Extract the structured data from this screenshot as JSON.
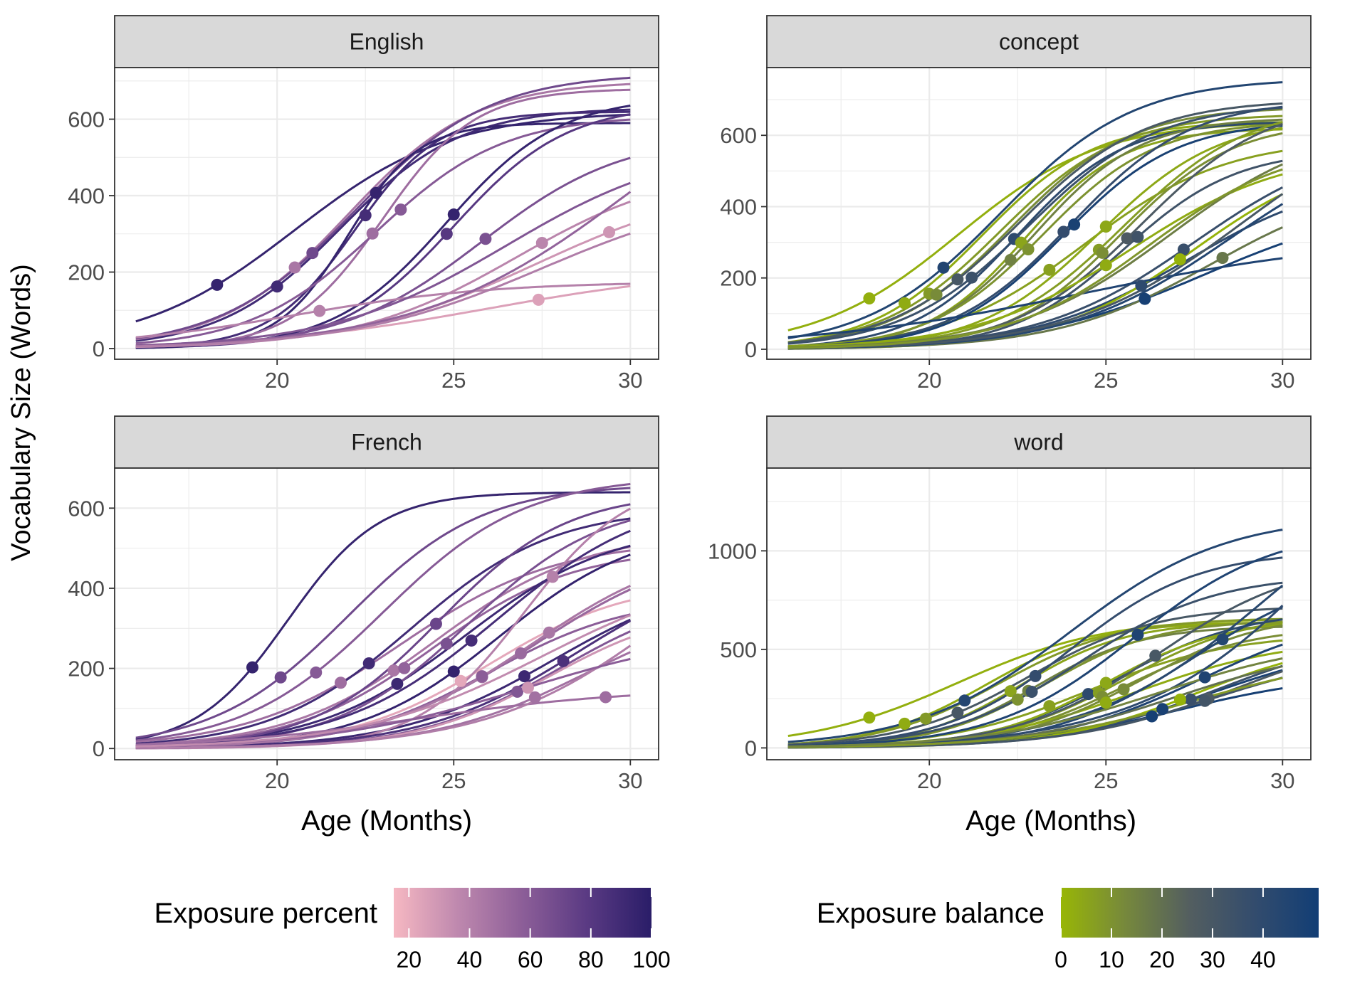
{
  "chart_data": {
    "type": "line",
    "layout": "facet-grid-2x2",
    "y_axis_title": "Vocabulary Size (Words)",
    "x_axis_title": "Age (Months)",
    "grid": true,
    "legend_placement": "bottom",
    "x_range": [
      15.4,
      30.8
    ],
    "x_ticks": [
      20,
      25,
      30
    ],
    "curve_start_age": 16,
    "curve_end_age": 30,
    "curve_model": "logistic: y = asym / (1 + exp(-(age - mid) / scale)); points mark an observed (age, words) on each child's curve",
    "panels": [
      {
        "id": "english",
        "strip": "English",
        "color_scale": "percent",
        "ylim": [
          -28,
          735
        ],
        "yticks": [
          0,
          200,
          400,
          600
        ],
        "series": [
          {
            "asym": 620,
            "mid": 20.5,
            "scale": 2.2,
            "c": 95,
            "px": 18.3
          },
          {
            "asym": 630,
            "mid": 21.8,
            "scale": 1.7,
            "c": 90,
            "px": 20.0
          },
          {
            "asym": 700,
            "mid": 22.0,
            "scale": 1.8,
            "c": 45,
            "px": 20.5
          },
          {
            "asym": 720,
            "mid": 22.2,
            "scale": 1.9,
            "c": 70,
            "px": 21.0
          },
          {
            "asym": 620,
            "mid": 22.2,
            "scale": 1.2,
            "c": 88,
            "px": 22.5
          },
          {
            "asym": 590,
            "mid": 22.0,
            "scale": 1.0,
            "c": 95,
            "px": 22.8
          },
          {
            "asym": 680,
            "mid": 23.0,
            "scale": 1.3,
            "c": 50,
            "px": 22.7
          },
          {
            "asym": 610,
            "mid": 22.8,
            "scale": 1.8,
            "c": 60,
            "px": 23.5
          },
          {
            "asym": 640,
            "mid": 25.0,
            "scale": 1.6,
            "c": 80,
            "px": 24.8
          },
          {
            "asym": 660,
            "mid": 24.8,
            "scale": 1.6,
            "c": 95,
            "px": 25.0
          },
          {
            "asym": 560,
            "mid": 25.8,
            "scale": 2.0,
            "c": 65,
            "px": 25.9
          },
          {
            "asym": 480,
            "mid": 26.8,
            "scale": 2.3,
            "c": 38,
            "px": 27.5
          },
          {
            "asym": 440,
            "mid": 27.3,
            "scale": 2.6,
            "c": 30,
            "px": 29.4
          },
          {
            "asym": 175,
            "mid": 20.5,
            "scale": 2.8,
            "c": 40,
            "px": 21.2
          },
          {
            "asym": 210,
            "mid": 26.0,
            "scale": 3.2,
            "c": 25,
            "px": 27.4
          },
          {
            "asym": 820,
            "mid": 30.0,
            "scale": 3.0,
            "c": 55
          },
          {
            "asym": 540,
            "mid": 26.5,
            "scale": 2.5,
            "c": 62
          },
          {
            "asym": 420,
            "mid": 27.5,
            "scale": 2.7,
            "c": 42
          }
        ]
      },
      {
        "id": "concept",
        "strip": "concept",
        "color_scale": "balance",
        "ylim": [
          -28,
          790
        ],
        "yticks": [
          0,
          200,
          400,
          600
        ],
        "series": [
          {
            "asym": 640,
            "mid": 20.8,
            "scale": 2.0,
            "c": 2,
            "px": 18.3
          },
          {
            "asym": 640,
            "mid": 21.5,
            "scale": 1.6,
            "c": 3,
            "px": 19.3
          },
          {
            "asym": 760,
            "mid": 22.0,
            "scale": 1.9,
            "c": 45,
            "px": 20.4
          },
          {
            "asym": 660,
            "mid": 22.0,
            "scale": 1.7,
            "c": 8,
            "px": 20.0
          },
          {
            "asym": 680,
            "mid": 22.3,
            "scale": 1.7,
            "c": 12,
            "px": 20.2
          },
          {
            "asym": 700,
            "mid": 22.5,
            "scale": 1.8,
            "c": 30,
            "px": 20.8
          },
          {
            "asym": 690,
            "mid": 22.8,
            "scale": 1.8,
            "c": 35,
            "px": 21.2
          },
          {
            "asym": 640,
            "mid": 22.5,
            "scale": 1.5,
            "c": 40,
            "px": 22.4
          },
          {
            "asym": 620,
            "mid": 22.7,
            "scale": 1.4,
            "c": 5,
            "px": 22.6
          },
          {
            "asym": 650,
            "mid": 23.0,
            "scale": 1.5,
            "c": 15,
            "px": 22.3
          },
          {
            "asym": 640,
            "mid": 23.2,
            "scale": 1.6,
            "c": 10,
            "px": 22.8
          },
          {
            "asym": 590,
            "mid": 24.4,
            "scale": 2.0,
            "c": 6,
            "px": 23.4
          },
          {
            "asym": 700,
            "mid": 24.0,
            "scale": 1.7,
            "c": 38,
            "px": 23.8
          },
          {
            "asym": 640,
            "mid": 23.8,
            "scale": 1.6,
            "c": 48,
            "px": 24.1
          },
          {
            "asym": 650,
            "mid": 24.8,
            "scale": 1.7,
            "c": 4,
            "px": 25.0
          },
          {
            "asym": 690,
            "mid": 25.5,
            "scale": 1.8,
            "c": 7,
            "px": 24.8
          },
          {
            "asym": 640,
            "mid": 25.4,
            "scale": 1.6,
            "c": 11,
            "px": 24.9
          },
          {
            "asym": 700,
            "mid": 26.0,
            "scale": 1.8,
            "c": 28,
            "px": 25.6
          },
          {
            "asym": 560,
            "mid": 25.5,
            "scale": 1.6,
            "c": 33,
            "px": 25.9
          },
          {
            "asym": 560,
            "mid": 25.7,
            "scale": 2.2,
            "c": 3,
            "px": 25.0
          },
          {
            "asym": 500,
            "mid": 27.3,
            "scale": 2.2,
            "c": 40,
            "px": 26.0
          },
          {
            "asym": 420,
            "mid": 27.8,
            "scale": 2.5,
            "c": 49,
            "px": 26.1
          },
          {
            "asym": 600,
            "mid": 27.5,
            "scale": 2.2,
            "c": 36,
            "px": 27.2
          },
          {
            "asym": 560,
            "mid": 27.5,
            "scale": 2.0,
            "c": 1,
            "px": 27.1
          },
          {
            "asym": 480,
            "mid": 28.0,
            "scale": 2.2,
            "c": 18,
            "px": 28.3
          },
          {
            "asym": 320,
            "mid": 24.5,
            "scale": 4.0,
            "c": 46
          },
          {
            "asym": 620,
            "mid": 28.5,
            "scale": 2.3,
            "c": 44
          },
          {
            "asym": 700,
            "mid": 28.8,
            "scale": 2.4,
            "c": 30
          },
          {
            "asym": 640,
            "mid": 26.8,
            "scale": 2.2,
            "c": 16
          },
          {
            "asym": 580,
            "mid": 26.2,
            "scale": 2.0,
            "c": 9
          }
        ]
      },
      {
        "id": "french",
        "strip": "French",
        "color_scale": "percent",
        "ylim": [
          -28,
          700
        ],
        "yticks": [
          0,
          200,
          400,
          600
        ],
        "series": [
          {
            "asym": 640,
            "mid": 20.3,
            "scale": 1.3,
            "c": 95,
            "px": 19.3
          },
          {
            "asym": 660,
            "mid": 22.0,
            "scale": 1.9,
            "c": 70,
            "px": 20.1
          },
          {
            "asym": 680,
            "mid": 23.0,
            "scale": 2.0,
            "c": 60,
            "px": 21.1
          },
          {
            "asym": 520,
            "mid": 23.5,
            "scale": 2.2,
            "c": 50,
            "px": 21.8
          },
          {
            "asym": 600,
            "mid": 23.8,
            "scale": 2.0,
            "c": 90,
            "px": 22.6
          },
          {
            "asym": 540,
            "mid": 24.5,
            "scale": 2.1,
            "c": 45,
            "px": 23.3
          },
          {
            "asym": 500,
            "mid": 24.4,
            "scale": 2.0,
            "c": 55,
            "px": 23.6
          },
          {
            "asym": 560,
            "mid": 25.3,
            "scale": 2.1,
            "c": 92,
            "px": 23.4
          },
          {
            "asym": 640,
            "mid": 24.6,
            "scale": 1.8,
            "c": 72,
            "px": 24.5
          },
          {
            "asym": 620,
            "mid": 25.4,
            "scale": 1.9,
            "c": 65,
            "px": 24.8
          },
          {
            "asym": 640,
            "mid": 26.2,
            "scale": 2.2,
            "c": 88,
            "px": 25.5
          },
          {
            "asym": 560,
            "mid": 26.3,
            "scale": 2.0,
            "c": 96,
            "px": 25.0
          },
          {
            "asym": 420,
            "mid": 26.0,
            "scale": 2.0,
            "c": 22,
            "px": 25.2
          },
          {
            "asym": 520,
            "mid": 27.3,
            "scale": 2.3,
            "c": 50,
            "px": 25.8
          },
          {
            "asym": 380,
            "mid": 26.0,
            "scale": 2.0,
            "c": 58,
            "px": 25.8
          },
          {
            "asym": 520,
            "mid": 27.3,
            "scale": 2.3,
            "c": 52,
            "px": 26.9
          },
          {
            "asym": 440,
            "mid": 27.8,
            "scale": 2.2,
            "c": 92,
            "px": 27.0
          },
          {
            "asym": 400,
            "mid": 28.0,
            "scale": 2.0,
            "c": 62,
            "px": 26.8
          },
          {
            "asym": 360,
            "mid": 27.7,
            "scale": 1.9,
            "c": 30,
            "px": 27.1
          },
          {
            "asym": 380,
            "mid": 28.8,
            "scale": 2.2,
            "c": 48,
            "px": 27.3
          },
          {
            "asym": 680,
            "mid": 27.0,
            "scale": 1.5,
            "c": 40,
            "px": 27.8
          },
          {
            "asym": 520,
            "mid": 27.2,
            "scale": 2.2,
            "c": 45,
            "px": 27.7
          },
          {
            "asym": 480,
            "mid": 28.5,
            "scale": 2.2,
            "c": 85,
            "px": 28.1
          },
          {
            "asym": 150,
            "mid": 24.0,
            "scale": 3.0,
            "c": 50,
            "px": 29.3
          },
          {
            "asym": 640,
            "mid": 31.0,
            "scale": 2.5,
            "c": 42
          },
          {
            "asym": 300,
            "mid": 27.0,
            "scale": 2.8,
            "c": 58
          },
          {
            "asym": 460,
            "mid": 27.5,
            "scale": 2.6,
            "c": 35
          }
        ]
      },
      {
        "id": "word",
        "strip": "word",
        "color_scale": "balance",
        "ylim": [
          -60,
          1420
        ],
        "yticks": [
          0,
          500,
          1000
        ],
        "series": [
          {
            "asym": 660,
            "mid": 20.8,
            "scale": 2.1,
            "c": 2,
            "px": 18.3
          },
          {
            "asym": 640,
            "mid": 21.6,
            "scale": 1.6,
            "c": 3,
            "px": 19.3
          },
          {
            "asym": 660,
            "mid": 22.0,
            "scale": 1.7,
            "c": 8,
            "px": 19.9
          },
          {
            "asym": 1180,
            "mid": 24.0,
            "scale": 2.2,
            "c": 44,
            "px": 21.0
          },
          {
            "asym": 720,
            "mid": 22.8,
            "scale": 1.8,
            "c": 30,
            "px": 20.8
          },
          {
            "asym": 640,
            "mid": 22.6,
            "scale": 1.5,
            "c": 5,
            "px": 22.3
          },
          {
            "asym": 620,
            "mid": 23.0,
            "scale": 1.5,
            "c": 15,
            "px": 22.8
          },
          {
            "asym": 650,
            "mid": 23.3,
            "scale": 1.6,
            "c": 10,
            "px": 22.5
          },
          {
            "asym": 880,
            "mid": 24.3,
            "scale": 1.9,
            "c": 35,
            "px": 22.9
          },
          {
            "asym": 1000,
            "mid": 24.0,
            "scale": 1.8,
            "c": 38,
            "px": 23.0
          },
          {
            "asym": 580,
            "mid": 24.5,
            "scale": 2.0,
            "c": 6,
            "px": 23.4
          },
          {
            "asym": 700,
            "mid": 25.3,
            "scale": 1.8,
            "c": 40,
            "px": 24.5
          },
          {
            "asym": 660,
            "mid": 25.0,
            "scale": 1.7,
            "c": 4,
            "px": 25.0
          },
          {
            "asym": 690,
            "mid": 25.5,
            "scale": 1.8,
            "c": 7,
            "px": 24.8
          },
          {
            "asym": 620,
            "mid": 25.5,
            "scale": 1.8,
            "c": 11,
            "px": 24.9
          },
          {
            "asym": 560,
            "mid": 25.8,
            "scale": 2.2,
            "c": 3,
            "px": 25.0
          },
          {
            "asym": 1120,
            "mid": 25.8,
            "scale": 2.0,
            "c": 46,
            "px": 25.9
          },
          {
            "asym": 690,
            "mid": 26.0,
            "scale": 1.8,
            "c": 12,
            "px": 25.5
          },
          {
            "asym": 560,
            "mid": 28.0,
            "scale": 2.3,
            "c": 48,
            "px": 26.6
          },
          {
            "asym": 380,
            "mid": 27.0,
            "scale": 2.2,
            "c": 49,
            "px": 26.3
          },
          {
            "asym": 960,
            "mid": 26.5,
            "scale": 2.0,
            "c": 30,
            "px": 26.4
          },
          {
            "asym": 600,
            "mid": 28.2,
            "scale": 2.2,
            "c": 36,
            "px": 27.4
          },
          {
            "asym": 560,
            "mid": 27.6,
            "scale": 2.0,
            "c": 1,
            "px": 27.1
          },
          {
            "asym": 700,
            "mid": 27.7,
            "scale": 2.1,
            "c": 46,
            "px": 27.8
          },
          {
            "asym": 620,
            "mid": 28.8,
            "scale": 2.3,
            "c": 28,
            "px": 27.9
          },
          {
            "asym": 500,
            "mid": 28.0,
            "scale": 2.2,
            "c": 32,
            "px": 27.8
          },
          {
            "asym": 920,
            "mid": 27.5,
            "scale": 2.0,
            "c": 44,
            "px": 28.3
          },
          {
            "asym": 2200,
            "mid": 32.0,
            "scale": 2.8,
            "c": 40
          },
          {
            "asym": 1500,
            "mid": 29.5,
            "scale": 2.5,
            "c": 42
          },
          {
            "asym": 520,
            "mid": 27.0,
            "scale": 2.2,
            "c": 20
          },
          {
            "asym": 480,
            "mid": 27.5,
            "scale": 2.4,
            "c": 8
          },
          {
            "asym": 560,
            "mid": 26.5,
            "scale": 2.4,
            "c": 14
          }
        ]
      }
    ],
    "legends": [
      {
        "id": "percent",
        "title": "Exposure percent",
        "domain": [
          15,
          100
        ],
        "stops": [
          "#f6b8c2",
          "#be88ae",
          "#8c5e98",
          "#5a3a83",
          "#2a1d68"
        ],
        "ticks": [
          20,
          40,
          60,
          80,
          100
        ]
      },
      {
        "id": "balance",
        "title": "Exposure balance",
        "domain": [
          0,
          51
        ],
        "stops": [
          "#98b606",
          "#76883c",
          "#535e60",
          "#334c6d",
          "#123e75"
        ],
        "ticks": [
          0,
          10,
          20,
          30,
          40
        ]
      }
    ]
  }
}
